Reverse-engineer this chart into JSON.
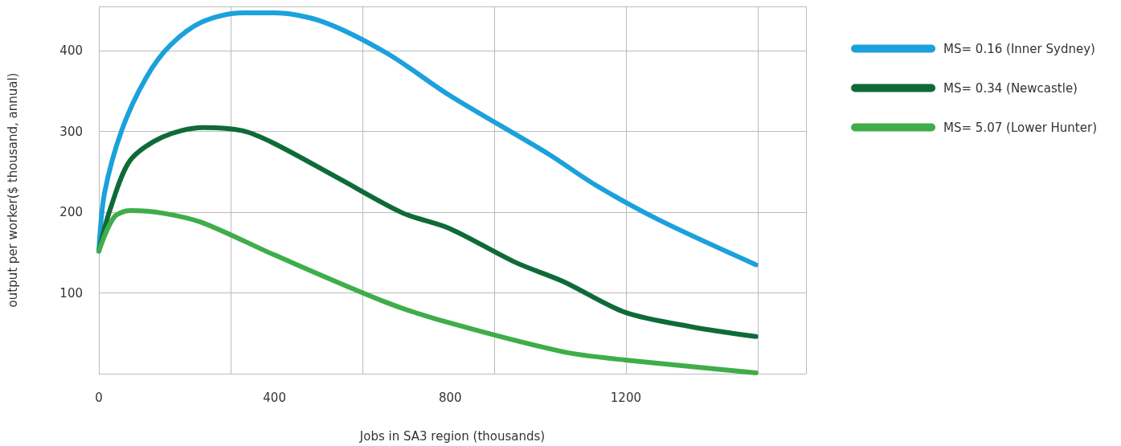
{
  "chart_data": {
    "type": "line",
    "xlabel": "Jobs in SA3 region (thousands)",
    "ylabel": "output per worker($ thousand, annual)",
    "xlim": [
      0,
      1610
    ],
    "xticks": [
      0,
      400,
      800,
      1200
    ],
    "ylim": [
      0,
      455
    ],
    "yticks": [
      100,
      200,
      300,
      400
    ],
    "grid": true,
    "legend": "top right",
    "marker": "none",
    "line_style": "solid",
    "series": [
      {
        "name": "MS= 0.16 (Inner Sydney)",
        "color": "#1ba1dc",
        "x": [
          0,
          13,
          53,
          108,
          163,
          236,
          327,
          400,
          510,
          656,
          798,
          1021,
          1130,
          1277,
          1496
        ],
        "values": [
          152,
          224,
          303,
          367,
          407,
          436,
          447,
          447,
          436,
          397,
          345,
          273,
          234,
          190,
          135
        ]
      },
      {
        "name": "MS= 0.34 (Newcastle)",
        "color": "#0e6b38",
        "x": [
          0,
          26,
          71,
          144,
          236,
          327,
          400,
          546,
          692,
          798,
          948,
          1058,
          1198,
          1350,
          1496
        ],
        "values": [
          152,
          204,
          264,
          293,
          305,
          301,
          285,
          242,
          199,
          180,
          138,
          114,
          76,
          58,
          46
        ]
      },
      {
        "name": "MS= 5.07 (Lower Hunter)",
        "color": "#3fad49",
        "x": [
          0,
          35,
          71,
          144,
          236,
          400,
          656,
          798,
          1058,
          1198,
          1496
        ],
        "values": [
          152,
          194,
          202,
          199,
          187,
          147,
          88,
          63,
          27,
          17,
          1
        ]
      }
    ]
  }
}
